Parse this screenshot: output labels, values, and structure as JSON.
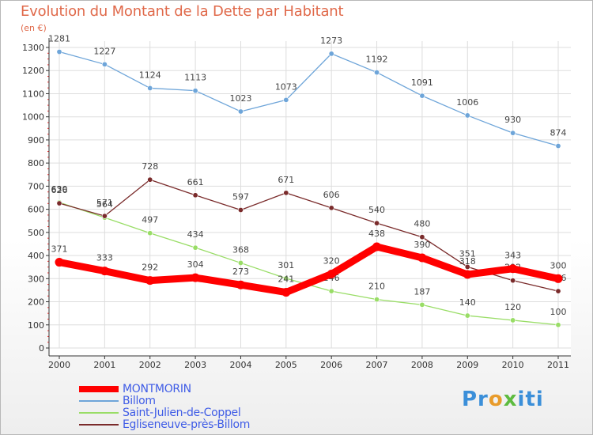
{
  "title": "Evolution du Montant de la Dette par Habitant",
  "unit_label": "(en €)",
  "brand": [
    "Pr",
    "o",
    "x",
    "iti"
  ],
  "chart_data": {
    "type": "line",
    "title": "Evolution du Montant de la Dette par Habitant",
    "ylabel": "(en €)",
    "xlabel": "",
    "categories": [
      "2000",
      "2001",
      "2002",
      "2003",
      "2004",
      "2005",
      "2006",
      "2007",
      "2008",
      "2009",
      "2010",
      "2011"
    ],
    "ylim": [
      0,
      1300
    ],
    "yticks": [
      0,
      100,
      200,
      300,
      400,
      500,
      600,
      700,
      800,
      900,
      1000,
      1100,
      1200,
      1300
    ],
    "grid": true,
    "legend_placement": "bottom-left",
    "series": [
      {
        "name": "MONTMORIN",
        "color": "#ff0000",
        "values": [
          371,
          333,
          292,
          304,
          273,
          241,
          320,
          438,
          390,
          318,
          343,
          300
        ]
      },
      {
        "name": "Billom",
        "color": "#6ea5d9",
        "values": [
          1281,
          1227,
          1124,
          1113,
          1023,
          1073,
          1273,
          1192,
          1091,
          1006,
          930,
          874
        ]
      },
      {
        "name": "Saint-Julien-de-Coppel",
        "color": "#99dd66",
        "values": [
          630,
          564,
          497,
          434,
          368,
          301,
          246,
          210,
          187,
          140,
          120,
          100
        ]
      },
      {
        "name": "Egliseneuve-près-Billom",
        "color": "#7a2b2b",
        "values": [
          626,
          571,
          728,
          661,
          597,
          671,
          606,
          540,
          480,
          351,
          292,
          246
        ]
      }
    ]
  }
}
